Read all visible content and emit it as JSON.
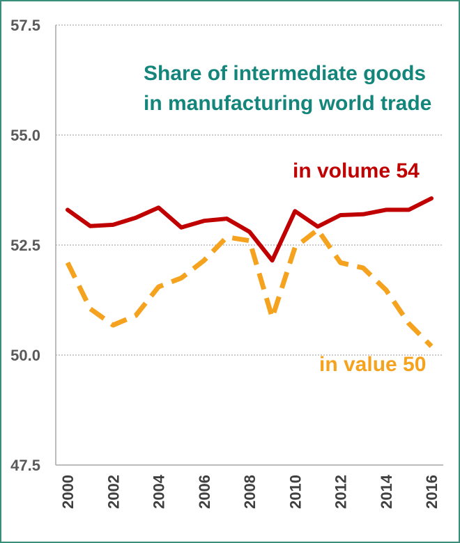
{
  "chart_data": {
    "type": "line",
    "title_lines": [
      "Share of intermediate goods",
      "in manufacturing world trade"
    ],
    "xlabel": "",
    "ylabel": "",
    "ylim": [
      47.5,
      57.5
    ],
    "y_ticks": [
      "47.5",
      "50.0",
      "52.5",
      "55.0",
      "57.5"
    ],
    "x_tick_labels": [
      "2000",
      "2002",
      "2004",
      "2006",
      "2008",
      "2010",
      "2012",
      "2014",
      "2016"
    ],
    "x": [
      2000,
      2001,
      2002,
      2003,
      2004,
      2005,
      2006,
      2007,
      2008,
      2009,
      2010,
      2011,
      2012,
      2013,
      2014,
      2015,
      2016
    ],
    "grid": "horizontal dotted",
    "series": [
      {
        "name": "in volume 54",
        "color": "#c00000",
        "style": "solid",
        "values": [
          53.3,
          52.93,
          52.96,
          53.12,
          53.35,
          52.9,
          53.05,
          53.1,
          52.8,
          52.15,
          53.27,
          52.92,
          53.18,
          53.2,
          53.3,
          53.3,
          53.56
        ]
      },
      {
        "name": "in value 50",
        "color": "#f5a31f",
        "style": "dashed",
        "values": [
          52.1,
          51.05,
          50.68,
          50.9,
          51.55,
          51.75,
          52.15,
          52.68,
          52.6,
          50.85,
          52.45,
          52.85,
          52.1,
          51.98,
          51.48,
          50.72,
          50.2
        ]
      }
    ]
  }
}
